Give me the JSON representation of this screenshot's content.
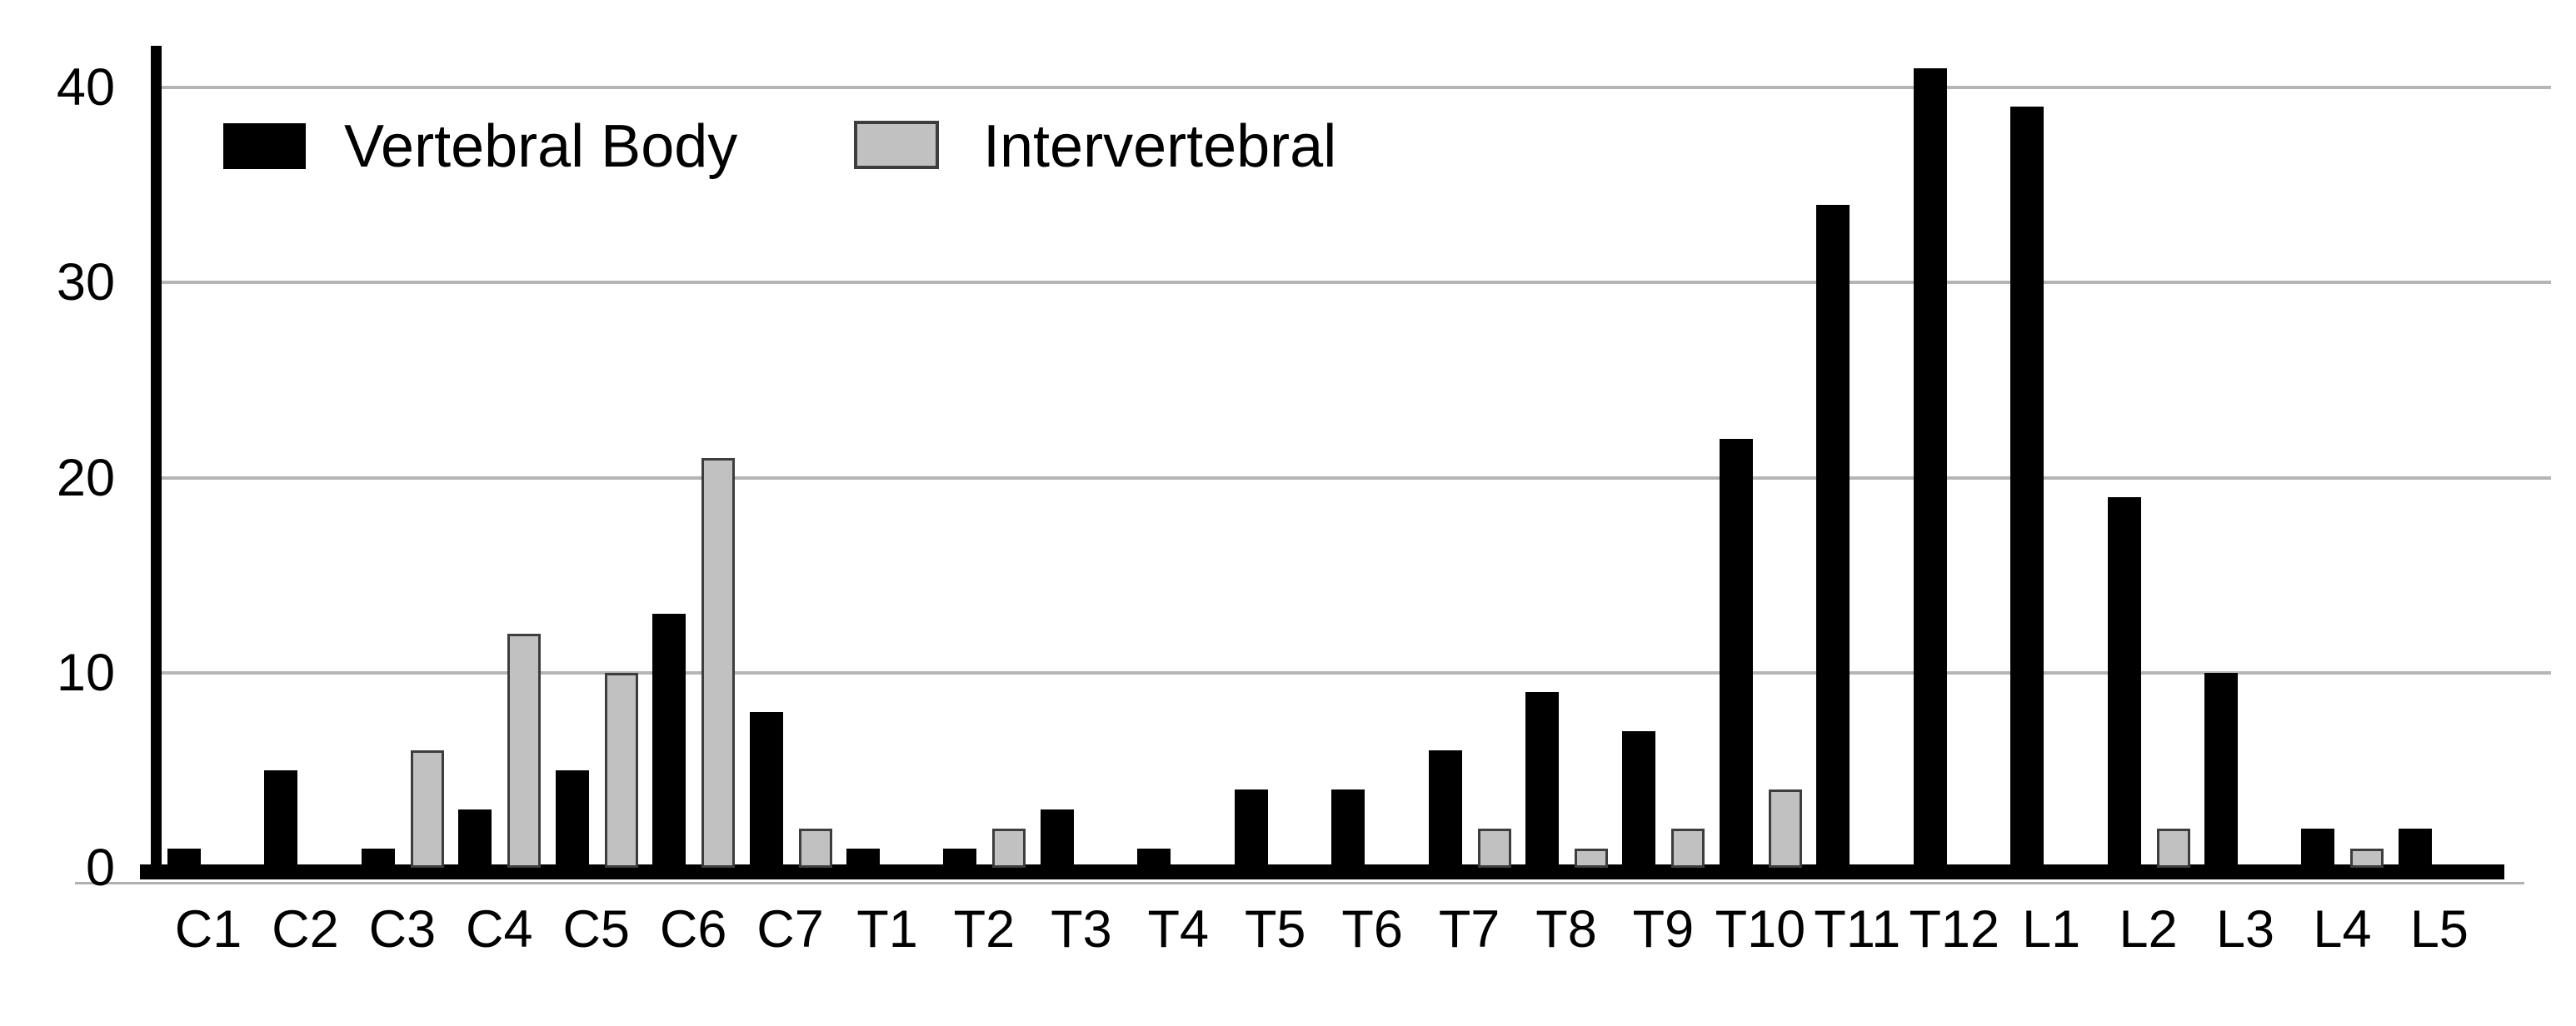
{
  "chart_data": {
    "type": "bar",
    "title": "",
    "xlabel": "",
    "ylabel": "",
    "categories": [
      "C1",
      "C2",
      "C3",
      "C4",
      "C5",
      "C6",
      "C7",
      "T1",
      "T2",
      "T3",
      "T4",
      "T5",
      "T6",
      "T7",
      "T8",
      "T9",
      "T10",
      "T11",
      "T12",
      "L1",
      "L2",
      "L3",
      "L4",
      "L5"
    ],
    "series": [
      {
        "name": "Vertebral Body",
        "color": "#000000",
        "border": "#000000",
        "values": [
          1,
          5,
          1,
          3,
          5,
          13,
          8,
          1,
          1,
          3,
          1,
          4,
          4,
          6,
          9,
          7,
          22,
          34,
          41,
          39,
          19,
          10,
          2,
          2
        ]
      },
      {
        "name": "Intervertebral",
        "color": "#c1c1c1",
        "border": "#3d3d3d",
        "values": [
          0,
          0,
          6,
          12,
          10,
          21,
          2,
          0,
          2,
          0,
          0,
          0,
          0,
          2,
          1,
          2,
          4,
          0,
          0,
          0,
          2,
          0,
          1,
          0
        ]
      }
    ],
    "ylim": [
      0,
      44
    ],
    "yticks": [
      0,
      10,
      20,
      30,
      40
    ],
    "grid": "horizontal",
    "legend_position": "top-left-inside"
  },
  "colors": {
    "background": "#ffffff",
    "gridline": "#b5b5b5",
    "axis": "#000000"
  }
}
